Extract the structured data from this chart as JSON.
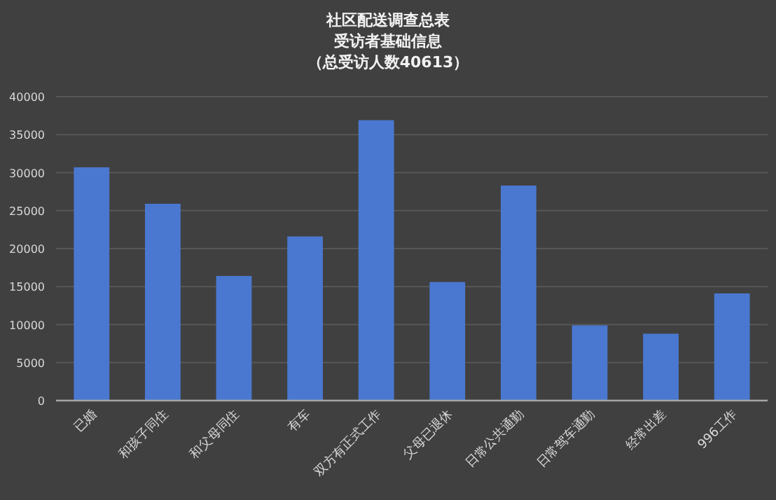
{
  "chart_data": {
    "type": "bar",
    "title": "社区配送调查总表",
    "subtitle": "受访者基础信息",
    "annotations": [
      "（总受访人数40613）"
    ],
    "categories": [
      "已婚",
      "和孩子同住",
      "和父母同住",
      "有车",
      "双方有正式工作",
      "父母已退休",
      "日常公共通勤",
      "日常驾车通勤",
      "经常出差",
      "996工作"
    ],
    "values": [
      30700,
      25900,
      16400,
      21600,
      36900,
      15600,
      28300,
      9900,
      8800,
      14100
    ],
    "color": "#4a78d0",
    "ylim": [
      0,
      40000
    ],
    "yticks": [
      0,
      5000,
      10000,
      15000,
      20000,
      25000,
      30000,
      35000,
      40000
    ],
    "grid": "y"
  }
}
